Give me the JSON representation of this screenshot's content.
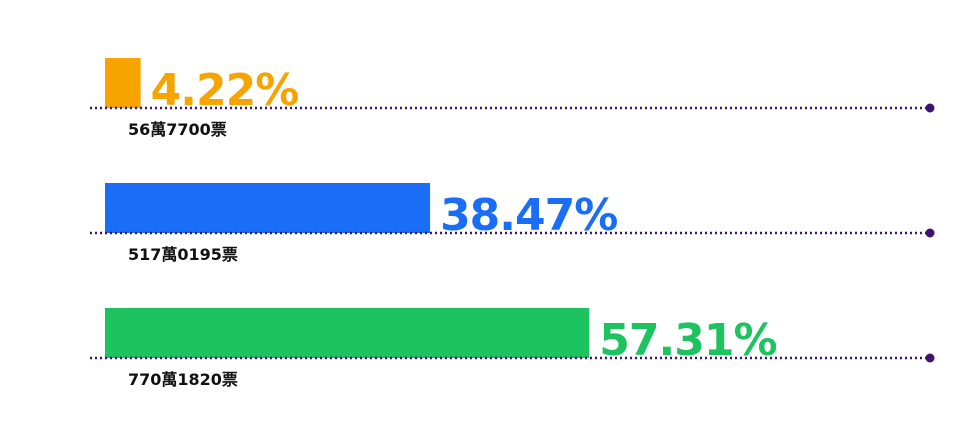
{
  "chart_data": {
    "type": "hbar",
    "categories": [
      null,
      null,
      null
    ],
    "values": [
      4.22,
      38.47,
      57.31
    ],
    "value_labels": [
      "4.22%",
      "38.47%",
      "57.31%"
    ],
    "vote_counts": [
      "56萬7700票",
      "517萬0195票",
      "770萬1820票"
    ],
    "colors": [
      "#f7a400",
      "#1a6ef5",
      "#1cc35f"
    ],
    "xlim": [
      0,
      100
    ]
  }
}
